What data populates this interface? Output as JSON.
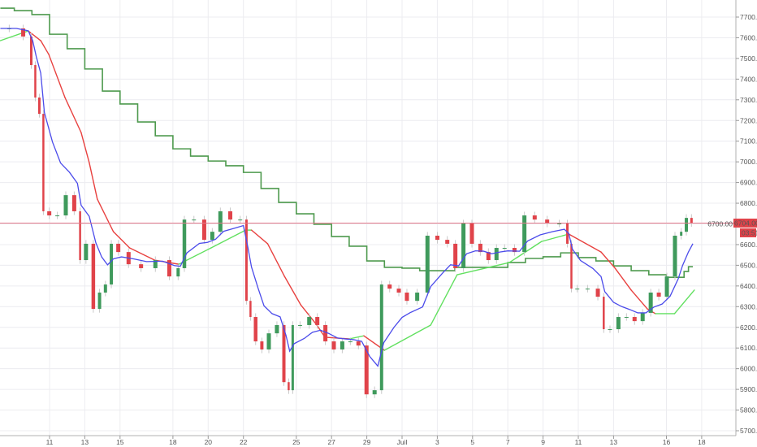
{
  "chart_data": {
    "type": "candlestick",
    "ylim": [
      5700,
      7700
    ],
    "y_ticks": [
      5700,
      5800,
      5900,
      6000,
      6100,
      6200,
      6300,
      6400,
      6500,
      6600,
      6700,
      6800,
      6900,
      7000,
      7100,
      7200,
      7300,
      7400,
      7500,
      7600,
      7700
    ],
    "y_tick_labels": [
      "5700.00",
      "5800.00",
      "5900.00",
      "6000.00",
      "6100.00",
      "6200.00",
      "6300.00",
      "6400.00",
      "6500.00",
      "6600.00",
      "6700.00",
      "6800.00",
      "6900.00",
      "7000.00",
      "7100.00",
      "7200.00",
      "7300.00",
      "7400.00",
      "7500.00",
      "7600.00",
      "7700.00"
    ],
    "x_ticks": [
      {
        "label": "11",
        "date": "06-11"
      },
      {
        "label": "13",
        "date": "06-13"
      },
      {
        "label": "15",
        "date": "06-15"
      },
      {
        "label": "18",
        "date": "06-18"
      },
      {
        "label": "20",
        "date": "06-20"
      },
      {
        "label": "22",
        "date": "06-22"
      },
      {
        "label": "25",
        "date": "06-25"
      },
      {
        "label": "27",
        "date": "06-27"
      },
      {
        "label": "29",
        "date": "06-29"
      },
      {
        "label": "Juil",
        "date": "07-01"
      },
      {
        "label": "3",
        "date": "07-03"
      },
      {
        "label": "5",
        "date": "07-05"
      },
      {
        "label": "7",
        "date": "07-07"
      },
      {
        "label": "9",
        "date": "07-09"
      },
      {
        "label": "11",
        "date": "07-11"
      },
      {
        "label": "13",
        "date": "07-13"
      },
      {
        "label": "16",
        "date": "07-16"
      },
      {
        "label": "18",
        "date": "07-18"
      }
    ],
    "grid": true,
    "last_price": 6704,
    "last_price_label": "6704.00",
    "countdown_label": "03:51",
    "colors": {
      "up": "#3f9a5c",
      "down": "#e0434a",
      "fast_ma": "#4b4bea",
      "trend_up": "#62e060",
      "trend_down": "#e8413f",
      "step_line": "#4e9a4e",
      "price_line": "#e57a8c",
      "price_label_bg": "#e0434a"
    },
    "closes": [
      [
        "06-08 05:00",
        7645
      ],
      [
        "06-09 03:00",
        7645
      ],
      [
        "06-09 19:00",
        7606
      ],
      [
        "06-10 01:00",
        7468
      ],
      [
        "06-10 06:00",
        7311
      ],
      [
        "06-10 12:00",
        7232
      ],
      [
        "06-10 17:00",
        6761
      ],
      [
        "06-11 04:00",
        6741
      ],
      [
        "06-11 15:00",
        6741
      ],
      [
        "06-12 03:00",
        6839
      ],
      [
        "06-12 14:00",
        6761
      ],
      [
        "06-12 19:00",
        6525
      ],
      [
        "06-13 06:00",
        6604
      ],
      [
        "06-13 15:00",
        6289
      ],
      [
        "06-13 23:00",
        6368
      ],
      [
        "06-14 07:00",
        6407
      ],
      [
        "06-14 15:00",
        6604
      ],
      [
        "06-15 02:00",
        6564
      ],
      [
        "06-15 19:00",
        6505
      ],
      [
        "06-16 12:00",
        6486
      ],
      [
        "06-17 10:00",
        6525
      ],
      [
        "06-18 02:00",
        6446
      ],
      [
        "06-18 10:00",
        6486
      ],
      [
        "06-18 19:00",
        6721
      ],
      [
        "06-19 12:00",
        6721
      ],
      [
        "06-19 23:00",
        6623
      ],
      [
        "06-20 10:00",
        6662
      ],
      [
        "06-20 21:00",
        6761
      ],
      [
        "06-21 13:00",
        6721
      ],
      [
        "06-22 00:00",
        6721
      ],
      [
        "06-22 06:00",
        6328
      ],
      [
        "06-22 11:00",
        6250
      ],
      [
        "06-22 20:00",
        6132
      ],
      [
        "06-23 04:00",
        6093
      ],
      [
        "06-23 15:00",
        6171
      ],
      [
        "06-24 02:00",
        6211
      ],
      [
        "06-24 10:00",
        5935
      ],
      [
        "06-24 15:00",
        5896
      ],
      [
        "06-24 21:00",
        6211
      ],
      [
        "06-25 11:00",
        6211
      ],
      [
        "06-25 22:00",
        6250
      ],
      [
        "06-26 09:00",
        6211
      ],
      [
        "06-26 20:00",
        6132
      ],
      [
        "06-27 08:00",
        6093
      ],
      [
        "06-27 19:00",
        6132
      ],
      [
        "06-28 06:00",
        6132
      ],
      [
        "06-28 17:00",
        6112
      ],
      [
        "06-29 04:00",
        5876
      ],
      [
        "06-29 15:00",
        5896
      ],
      [
        "06-29 23:00",
        6407
      ],
      [
        "06-30 13:00",
        6387
      ],
      [
        "07-01 00:00",
        6368
      ],
      [
        "07-01 11:00",
        6328
      ],
      [
        "07-02 04:00",
        6368
      ],
      [
        "07-02 15:00",
        6643
      ],
      [
        "07-03 07:00",
        6623
      ],
      [
        "07-03 18:00",
        6604
      ],
      [
        "07-04 05:00",
        6486
      ],
      [
        "07-04 16:00",
        6702
      ],
      [
        "07-05 04:00",
        6604
      ],
      [
        "07-05 15:00",
        6564
      ],
      [
        "07-06 02:00",
        6525
      ],
      [
        "07-06 13:00",
        6584
      ],
      [
        "07-07 00:00",
        6584
      ],
      [
        "07-07 16:00",
        6564
      ],
      [
        "07-08 03:00",
        6741
      ],
      [
        "07-08 20:00",
        6721
      ],
      [
        "07-09 13:00",
        6702
      ],
      [
        "07-10 05:00",
        6702
      ],
      [
        "07-10 11:00",
        6604
      ],
      [
        "07-10 16:00",
        6387
      ],
      [
        "07-11 03:00",
        6387
      ],
      [
        "07-11 20:00",
        6387
      ],
      [
        "07-12 07:00",
        6348
      ],
      [
        "07-12 12:00",
        6191
      ],
      [
        "07-13 00:00",
        6191
      ],
      [
        "07-13 11:00",
        6250
      ],
      [
        "07-13 22:00",
        6250
      ],
      [
        "07-14 09:00",
        6230
      ],
      [
        "07-14 20:00",
        6270
      ],
      [
        "07-15 07:00",
        6368
      ],
      [
        "07-15 18:00",
        6348
      ],
      [
        "07-16 05:00",
        6446
      ],
      [
        "07-16 16:00",
        6643
      ],
      [
        "07-16 22:00",
        6662
      ],
      [
        "07-17 06:00",
        6729
      ],
      [
        "07-17 12:00",
        6704
      ]
    ],
    "trend_line": [
      [
        "06-08 05:00",
        7586
      ],
      [
        "06-09 19:00",
        7633
      ],
      [
        "06-10 12:00",
        7586
      ],
      [
        "06-10 23:00",
        7519
      ],
      [
        "06-11 21:00",
        7311
      ],
      [
        "06-12 19:00",
        7142
      ],
      [
        "06-13 06:00",
        6997
      ],
      [
        "06-13 17:00",
        6820
      ],
      [
        "06-14 15:00",
        6662
      ],
      [
        "06-15 13:00",
        6584
      ],
      [
        "06-16 23:00",
        6525
      ],
      [
        "06-18 08:00",
        6505
      ],
      [
        "06-20 04:00",
        6584
      ],
      [
        "06-22 03:00",
        6670
      ],
      [
        "06-22 11:00",
        6670
      ],
      [
        "06-23 09:00",
        6604
      ],
      [
        "06-24 08:00",
        6446
      ],
      [
        "06-25 06:00",
        6309
      ],
      [
        "06-26 04:00",
        6211
      ],
      [
        "06-26 15:00",
        6152
      ],
      [
        "06-28 00:00",
        6144
      ],
      [
        "06-28 20:00",
        6159
      ],
      [
        "06-30 00:00",
        6089
      ],
      [
        "07-02 15:00",
        6211
      ],
      [
        "07-04 03:00",
        6454
      ],
      [
        "07-07 02:00",
        6513
      ],
      [
        "07-08 22:00",
        6615
      ],
      [
        "07-10 03:00",
        6643
      ],
      [
        "07-10 11:00",
        6651
      ],
      [
        "07-12 07:00",
        6564
      ],
      [
        "07-13 02:00",
        6486
      ],
      [
        "07-14 00:00",
        6380
      ],
      [
        "07-14 22:00",
        6289
      ],
      [
        "07-15 09:00",
        6266
      ],
      [
        "07-16 11:00",
        6266
      ],
      [
        "07-17 14:00",
        6380
      ]
    ],
    "step_line": [
      [
        "06-08 05:00",
        7743
      ],
      [
        "06-09 00:00",
        7731
      ],
      [
        "06-10 00:00",
        7712
      ],
      [
        "06-11 00:00",
        7617
      ],
      [
        "06-12 00:00",
        7547
      ],
      [
        "06-13 00:00",
        7449
      ],
      [
        "06-14 00:00",
        7342
      ],
      [
        "06-15 00:00",
        7280
      ],
      [
        "06-16 00:00",
        7193
      ],
      [
        "06-17 00:00",
        7126
      ],
      [
        "06-18 00:00",
        7063
      ],
      [
        "06-19 00:00",
        7028
      ],
      [
        "06-20 00:00",
        7004
      ],
      [
        "06-21 00:00",
        6981
      ],
      [
        "06-22 00:00",
        6949
      ],
      [
        "06-23 00:00",
        6871
      ],
      [
        "06-24 00:00",
        6804
      ],
      [
        "06-25 00:00",
        6749
      ],
      [
        "06-26 00:00",
        6698
      ],
      [
        "06-27 00:00",
        6639
      ],
      [
        "06-28 00:00",
        6592
      ],
      [
        "06-29 00:00",
        6521
      ],
      [
        "06-30 00:00",
        6490
      ],
      [
        "07-01 00:00",
        6486
      ],
      [
        "07-02 00:00",
        6474
      ],
      [
        "07-04 00:00",
        6490
      ],
      [
        "07-07 00:00",
        6513
      ],
      [
        "07-08 00:00",
        6533
      ],
      [
        "07-09 00:00",
        6541
      ],
      [
        "07-10 00:00",
        6560
      ],
      [
        "07-11 00:00",
        6537
      ],
      [
        "07-12 00:00",
        6521
      ],
      [
        "07-13 00:00",
        6497
      ],
      [
        "07-14 00:00",
        6474
      ],
      [
        "07-15 00:00",
        6454
      ],
      [
        "07-16 00:00",
        6442
      ],
      [
        "07-17 00:00",
        6470
      ],
      [
        "07-17 06:00",
        6493
      ],
      [
        "07-17 12:00",
        6493
      ]
    ]
  }
}
